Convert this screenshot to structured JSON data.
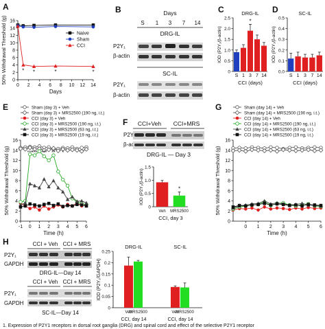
{
  "panel_letters": [
    "A",
    "B",
    "C",
    "D",
    "E",
    "F",
    "G",
    "H"
  ],
  "caption_fragment": "1. Expression of P2Y1 receptors in dorsal root ganglia (DRG) and spinal cord and effect of the selective P2Y1 receptor",
  "blots": {
    "B": {
      "header": "Days",
      "lanes": [
        "S",
        "1",
        "3",
        "7",
        "14"
      ],
      "group1": "DRG-IL",
      "group2": "SC-IL",
      "band1": "P2Y₁",
      "band2": "β-actin"
    },
    "F": {
      "group1": "CCI+Veh",
      "group2": "CCI+MRS",
      "band1": "P2Y₁",
      "band2": "β-actin",
      "caption": "DRG-IL — Day 3"
    },
    "H": {
      "group1": "CCI + Veh",
      "group2": "CCI + MRS",
      "band1": "P2Y₁",
      "band2": "GAPDH",
      "caption_drg": "DRG-IL—Day 14",
      "caption_sc": "SC-IL—Day 14"
    }
  },
  "chart_data": [
    {
      "panel": "A",
      "type": "line",
      "ylabel": "50% Withdrawal Threshold  (g)",
      "xlabel": "Days",
      "x": [
        0,
        1,
        3,
        7,
        14
      ],
      "xticks": [
        0,
        2,
        4,
        6,
        8,
        10,
        12,
        14
      ],
      "yticks": [
        0,
        2,
        4,
        6,
        8,
        10,
        12,
        14,
        16
      ],
      "xlim": [
        0,
        14
      ],
      "ylim": [
        0,
        16
      ],
      "legend": "right",
      "series": [
        {
          "name": "Naive",
          "color": "#111111",
          "marker": "square",
          "values": [
            14.8,
            14.6,
            14.7,
            14.8,
            14.8
          ]
        },
        {
          "name": "Sham",
          "color": "#1f3fbf",
          "marker": "circle",
          "values": [
            14.6,
            14.3,
            14.2,
            14.4,
            14.3
          ]
        },
        {
          "name": "CCI",
          "color": "#e02020",
          "marker": "triangle",
          "values": [
            14.5,
            4.0,
            3.6,
            3.7,
            3.6
          ]
        }
      ],
      "significance": [
        "*",
        "*",
        "*",
        "*"
      ]
    },
    {
      "panel": "C",
      "type": "bar",
      "title": "DRG-IL",
      "ylabel": "IOD (P2Y₁/β-actin)",
      "xlabel": "CCI (days)",
      "categories": [
        "S",
        "1",
        "3",
        "7",
        "14"
      ],
      "values": [
        0.9,
        1.1,
        1.9,
        1.5,
        1.2
      ],
      "errors": [
        0.1,
        0.15,
        0.3,
        0.2,
        0.15
      ],
      "colors": [
        "#1f3fbf",
        "#e02020",
        "#e02020",
        "#e02020",
        "#e02020"
      ],
      "yticks": [
        0,
        0.5,
        1.0,
        1.5,
        2.0,
        2.5
      ],
      "ytick_labels": [
        "0",
        "0.5",
        "1.0",
        "1.5",
        "2.0",
        "2.5"
      ],
      "ylim": [
        0,
        2.5
      ],
      "significance": [
        "",
        "",
        "*",
        "",
        ""
      ]
    },
    {
      "panel": "D",
      "type": "bar",
      "title": "SC-IL",
      "ylabel": "IOD (P2Y₁/β-actin)",
      "xlabel": "CCI (days)",
      "categories": [
        "S",
        "1",
        "3",
        "7",
        "14"
      ],
      "values": [
        0.12,
        0.14,
        0.13,
        0.13,
        0.15
      ],
      "errors": [
        0.05,
        0.04,
        0.03,
        0.03,
        0.03
      ],
      "colors": [
        "#1f3fbf",
        "#e02020",
        "#e02020",
        "#e02020",
        "#e02020"
      ],
      "yticks": [
        0,
        0.1,
        0.2,
        0.3,
        0.4,
        0.5
      ],
      "ytick_labels": [
        "0.0",
        "0.1",
        "0.2",
        "0.3",
        "0.4",
        "0.5"
      ],
      "ylim": [
        0,
        0.5
      ]
    },
    {
      "panel": "E",
      "type": "line",
      "ylabel": "50% Withdrawal Threshold  (g)",
      "xlabel": "Time (h)",
      "x": [
        -1,
        -0.5,
        0,
        0.5,
        1,
        1.5,
        2,
        2.5,
        3,
        3.5,
        4,
        4.5,
        5,
        5.5,
        6
      ],
      "xticks": [
        -1,
        0,
        1,
        2,
        3,
        4,
        5,
        6
      ],
      "yticks": [
        0,
        2,
        4,
        6,
        8,
        10,
        12,
        14,
        16
      ],
      "xlim": [
        -1,
        6
      ],
      "ylim": [
        0,
        16
      ],
      "legend": "top",
      "series": [
        {
          "name": "Sham (day 3) + Veh",
          "color": "#555555",
          "marker": "circle-open",
          "values": [
            14.5,
            14.6,
            14.7,
            14.6,
            14.8,
            14.5,
            14.6,
            14.2,
            14.3,
            14.5,
            14.4,
            14.6,
            14.3,
            14.5,
            14.6
          ]
        },
        {
          "name": "Sham (day 3) + MRS2500 (190 ng, i.t.)",
          "color": "#555555",
          "marker": "diamond-open",
          "values": [
            14.3,
            14.2,
            14.5,
            14.2,
            14.3,
            14.0,
            14.1,
            14.4,
            13.9,
            14.2,
            14.0,
            14.1,
            14.0,
            13.8,
            14.2
          ]
        },
        {
          "name": "CCI (day 3) + Veh",
          "color": "#e02020",
          "marker": "circle",
          "values": [
            3.5,
            3.0,
            2.5,
            2.8,
            2.2,
            3.0,
            2.4,
            2.8,
            3.2,
            2.8,
            3.3,
            3.0,
            3.6,
            3.0,
            3.3
          ]
        },
        {
          "name": "CCI (day 3) + MRS2500 (190 ng, i.t.)",
          "color": "#22aa22",
          "marker": "circle-open",
          "values": [
            3.8,
            4.0,
            13.2,
            13.0,
            13.8,
            12.8,
            12.0,
            13.0,
            9.8,
            8.2,
            7.0,
            4.5,
            3.8,
            3.4,
            3.3
          ]
        },
        {
          "name": "CCI (day 3) + MRS2500 (63 ng, i.t.)",
          "color": "#444444",
          "marker": "triangle",
          "values": [
            3.2,
            3.6,
            7.4,
            7.0,
            6.6,
            8.3,
            6.8,
            8.0,
            6.6,
            5.8,
            4.3,
            4.8,
            3.9,
            4.0,
            3.6
          ]
        },
        {
          "name": "CCI (day 3) + MRS2500 (19 ng, i.t.)",
          "color": "#111111",
          "marker": "square",
          "values": [
            2.8,
            3.0,
            3.4,
            3.2,
            3.0,
            3.3,
            3.5,
            3.1,
            3.4,
            2.9,
            3.1,
            3.0,
            3.3,
            3.2,
            3.0
          ]
        }
      ],
      "significance": [
        "***",
        "***",
        "***",
        "**",
        "*"
      ]
    },
    {
      "panel": "F",
      "type": "bar",
      "ylabel": "IOD (P2Y₁/β-actin)",
      "xlabel": "CCI, day 3",
      "categories": [
        "Veh",
        "MRS2500"
      ],
      "values": [
        0.92,
        0.42
      ],
      "errors": [
        0.07,
        0.14
      ],
      "colors": [
        "#e02020",
        "#22dd22"
      ],
      "yticks": [
        0,
        0.5,
        1.0,
        1.5
      ],
      "ytick_labels": [
        "0",
        "0.5",
        "1.0",
        "1.5"
      ],
      "ylim": [
        0,
        1.5
      ],
      "significance": [
        "",
        "*"
      ]
    },
    {
      "panel": "G",
      "type": "line",
      "ylabel": "50% Withdrawal Threshold  (g)",
      "xlabel": "Time (h)",
      "x": [
        -1,
        -0.5,
        0,
        0.5,
        1,
        1.5,
        2,
        2.5,
        3,
        3.5,
        4,
        4.5,
        5,
        5.5,
        6
      ],
      "xticks": [
        0,
        1,
        2,
        3,
        4,
        5,
        6
      ],
      "yticks": [
        0,
        2,
        4,
        6,
        8,
        10,
        12,
        14,
        16
      ],
      "xlim": [
        -1,
        6
      ],
      "ylim": [
        0,
        16
      ],
      "legend": "top",
      "series": [
        {
          "name": "Sham (day 14) + Veh",
          "color": "#555555",
          "marker": "circle-open",
          "values": [
            14.4,
            14.5,
            14.4,
            14.6,
            14.5,
            14.4,
            14.6,
            14.5,
            14.3,
            14.5,
            14.6,
            14.4,
            14.5,
            14.6,
            14.5
          ]
        },
        {
          "name": "Sham (day 14) + MRS2500 (190 ng, i.t.)",
          "color": "#555555",
          "marker": "diamond-open",
          "values": [
            13.9,
            14.0,
            13.8,
            14.1,
            14.0,
            13.9,
            14.0,
            13.8,
            14.1,
            14.0,
            13.9,
            14.0,
            14.1,
            13.9,
            14.0
          ]
        },
        {
          "name": "CCI (day 14) + Veh",
          "color": "#e02020",
          "marker": "circle",
          "values": [
            2.2,
            2.5,
            2.4,
            2.6,
            2.2,
            2.8,
            2.4,
            2.6,
            2.5,
            2.3,
            2.6,
            2.4,
            2.7,
            2.5,
            2.6
          ]
        },
        {
          "name": "CCI (day 14) + MRS2500 (190 ng, i.t.)",
          "color": "#22aa22",
          "marker": "circle-open",
          "values": [
            2.4,
            2.8,
            3.0,
            3.2,
            3.3,
            3.8,
            3.1,
            3.5,
            3.6,
            3.2,
            3.0,
            3.3,
            3.4,
            3.0,
            2.9
          ]
        },
        {
          "name": "CCI (day 14) + MRS2500 (63 ng, i.t.)",
          "color": "#444444",
          "marker": "triangle",
          "values": [
            2.6,
            3.0,
            3.2,
            3.4,
            3.5,
            4.0,
            3.4,
            3.6,
            3.4,
            3.2,
            3.3,
            3.5,
            3.2,
            3.1,
            3.0
          ]
        },
        {
          "name": "CCI (day 14) + MRS2500 (19 ng, i.t.)",
          "color": "#111111",
          "marker": "square",
          "values": [
            2.8,
            3.1,
            3.0,
            3.2,
            3.3,
            3.5,
            3.2,
            3.4,
            3.3,
            3.1,
            3.2,
            3.0,
            3.3,
            3.2,
            3.1
          ]
        }
      ]
    },
    {
      "panel": "H",
      "type": "bar",
      "ylabel": "IOD (P2Y₁/GAPDH)",
      "xlabel": "CCI, day 14",
      "groups": [
        "DRG-IL",
        "SC-IL"
      ],
      "categories": [
        "Veh",
        "MRS2500"
      ],
      "series": [
        {
          "group": "DRG-IL",
          "values": [
            0.187,
            0.205
          ],
          "errors": [
            0.038,
            0.005
          ]
        },
        {
          "group": "SC-IL",
          "values": [
            0.092,
            0.09
          ],
          "errors": [
            0.005,
            0.02
          ]
        }
      ],
      "colors": [
        "#e02020",
        "#22dd22"
      ],
      "yticks": [
        0,
        0.05,
        0.1,
        0.15,
        0.2,
        0.25
      ],
      "ytick_labels": [
        "0",
        "0.05",
        "0.1",
        "0.15",
        "0.2",
        "0.25"
      ],
      "ylim": [
        0,
        0.25
      ]
    }
  ]
}
